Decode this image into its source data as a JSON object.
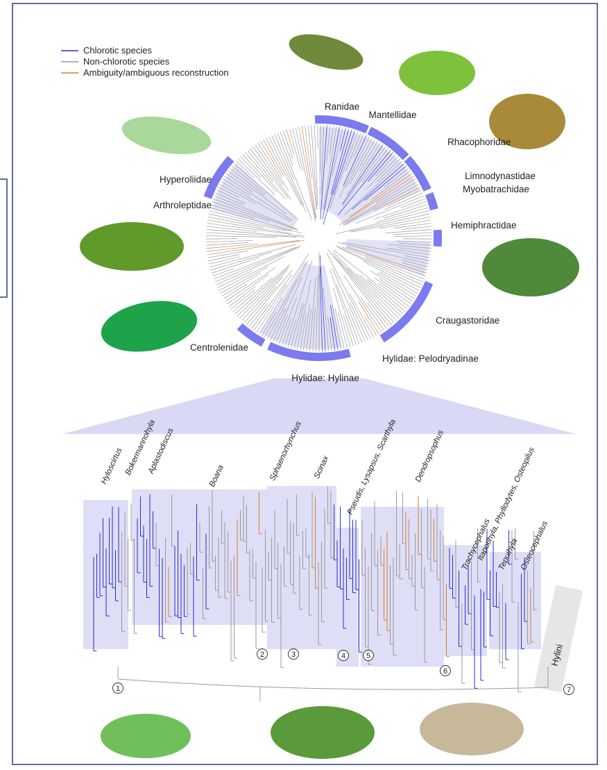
{
  "legend": [
    {
      "label": "Chlorotic species",
      "color": "#2b2bd0"
    },
    {
      "label": "Non-chlorotic species",
      "color": "#9a9a9a"
    },
    {
      "label": "Ambiguity/ambiguous reconstruction",
      "color": "#e07a2a"
    }
  ],
  "families": [
    "Ranidae",
    "Mantellidae",
    "Rhacophoridae",
    "Limnodynastidae",
    "Myobatrachidae",
    "Hemiphractidae",
    "Craugastoridae",
    "Hylidae: Pelodryadinae",
    "Hylidae: Hylinae",
    "Centrolenidae",
    "Arthroleptidae",
    "Hyperoliidae"
  ],
  "genera": [
    "Hyloscirtus",
    "Bokermannohyla",
    "Aplastodiscus",
    "Boana",
    "Sphaenorhynchus",
    "Scinax",
    "Pseudis, Lysapsus, Scarthyla",
    "Dendropsophus",
    "Trachycephalus",
    "Itapotihyla, Phyllodytes, Osteopilus",
    "Tepuihyla",
    "Osteocephalus"
  ],
  "clade_numbers": [
    "1",
    "2",
    "3",
    "4",
    "5",
    "6",
    "7"
  ],
  "tribe": "Hylini"
}
